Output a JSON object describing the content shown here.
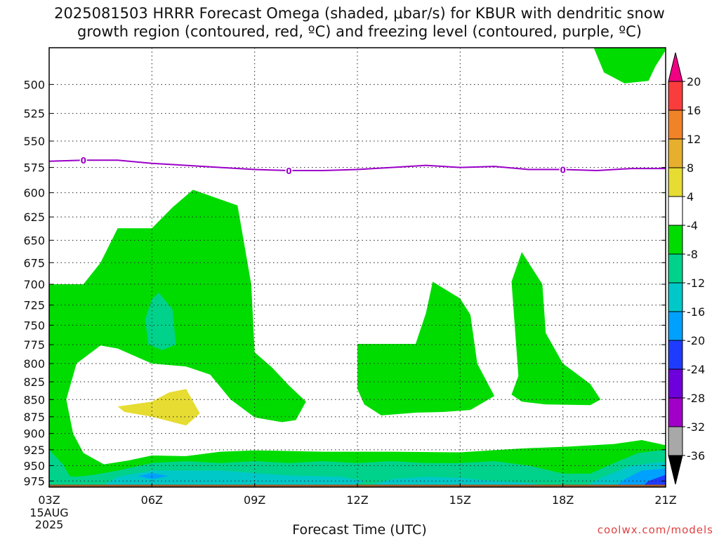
{
  "title_lines": [
    "2025081503 HRRR Forecast Omega (shaded, μbar/s) for KBUR with dendritic snow",
    "growth region (contoured, red, ºC) and freezing level (contoured, purple, ºC)"
  ],
  "xlabel": "Forecast Time (UTC)",
  "credit": "coolwx.com/models",
  "chart_data": {
    "type": "area",
    "title": "2025081503 HRRR Forecast Omega (shaded, μbar/s) for KBUR with dendritic snow growth region (contoured, red, ºC) and freezing level (contoured, purple, ºC)",
    "xlabel": "Forecast Time (UTC)",
    "ylabel": "",
    "x_ticks": [
      "03Z",
      "06Z",
      "09Z",
      "12Z",
      "15Z",
      "18Z",
      "21Z"
    ],
    "x_first_sub": [
      "15AUG",
      "2025"
    ],
    "xlim": [
      3,
      21
    ],
    "y_ticks": [
      500,
      525,
      550,
      575,
      600,
      625,
      650,
      675,
      700,
      725,
      750,
      775,
      800,
      825,
      850,
      875,
      900,
      925,
      950,
      975
    ],
    "ylim": [
      470,
      985
    ],
    "y_scale": "log-pressure",
    "grid": true,
    "colorbar": {
      "levels": [
        -36,
        -32,
        -28,
        -24,
        -20,
        -16,
        -12,
        -8,
        -4,
        4,
        8,
        12,
        16,
        20
      ],
      "colors": [
        "#000000",
        "#a8a8a8",
        "#a000c8",
        "#6e00dc",
        "#1e3cff",
        "#00a0ff",
        "#00c8c8",
        "#00d28c",
        "#00dc00",
        "#ffffff",
        "#e6dc32",
        "#e6af2d",
        "#f08228",
        "#fa3c3c",
        "#f00082"
      ]
    },
    "freezing_level": {
      "label": "0",
      "color": "#9b00c8",
      "x": [
        3,
        4,
        5,
        6,
        7,
        8,
        9,
        10,
        11,
        12,
        13,
        14,
        15,
        16,
        17,
        18,
        19,
        20,
        21
      ],
      "y": [
        569,
        568,
        568,
        571,
        573,
        575,
        577,
        578,
        578,
        577,
        575,
        573,
        575,
        574,
        577,
        577,
        578,
        576,
        576
      ]
    },
    "regions": [
      {
        "level": -8,
        "color": "#00dc00",
        "points": [
          [
            3.0,
            700
          ],
          [
            4.0,
            700
          ],
          [
            4.5,
            675
          ],
          [
            5.0,
            637
          ],
          [
            6.0,
            637
          ],
          [
            6.6,
            615
          ],
          [
            7.2,
            597
          ],
          [
            8.5,
            613
          ],
          [
            8.9,
            700
          ],
          [
            9.0,
            785
          ],
          [
            9.5,
            805
          ],
          [
            10.0,
            830
          ],
          [
            10.5,
            853
          ],
          [
            10.2,
            880
          ],
          [
            9.8,
            883
          ],
          [
            9.0,
            876
          ],
          [
            8.3,
            850
          ],
          [
            7.7,
            815
          ],
          [
            7.0,
            804
          ],
          [
            6.0,
            800
          ],
          [
            5.0,
            780
          ],
          [
            4.5,
            776
          ],
          [
            3.8,
            800
          ],
          [
            3.5,
            850
          ],
          [
            3.7,
            900
          ],
          [
            4.0,
            930
          ],
          [
            4.6,
            948
          ],
          [
            5.3,
            942
          ],
          [
            6.0,
            934
          ],
          [
            7.0,
            935
          ],
          [
            8.0,
            928
          ],
          [
            9.0,
            926
          ],
          [
            11.0,
            928
          ],
          [
            13.0,
            928
          ],
          [
            15.0,
            929
          ],
          [
            16.8,
            923
          ],
          [
            18.2,
            920
          ],
          [
            19.5,
            916
          ],
          [
            20.3,
            910
          ],
          [
            21.0,
            918
          ],
          [
            21.0,
            985
          ],
          [
            3.0,
            985
          ]
        ]
      },
      {
        "level": -8,
        "color": "#00dc00",
        "points": [
          [
            12.0,
            774
          ],
          [
            13.7,
            774
          ],
          [
            14.0,
            735
          ],
          [
            14.2,
            697
          ],
          [
            15.0,
            717
          ],
          [
            15.3,
            737
          ],
          [
            15.5,
            800
          ],
          [
            16.0,
            845
          ],
          [
            15.3,
            865
          ],
          [
            14.5,
            868
          ],
          [
            13.7,
            869
          ],
          [
            12.7,
            873
          ],
          [
            12.2,
            857
          ],
          [
            12.0,
            835
          ]
        ]
      },
      {
        "level": -8,
        "color": "#00dc00",
        "points": [
          [
            16.5,
            843
          ],
          [
            16.7,
            817
          ],
          [
            16.5,
            697
          ],
          [
            16.8,
            663
          ],
          [
            17.4,
            700
          ],
          [
            17.5,
            760
          ],
          [
            18.0,
            800
          ],
          [
            18.8,
            828
          ],
          [
            19.1,
            850
          ],
          [
            18.8,
            858
          ],
          [
            17.5,
            857
          ],
          [
            16.8,
            853
          ]
        ]
      },
      {
        "level": -8,
        "color": "#00dc00",
        "points": [
          [
            19.4,
            470
          ],
          [
            21.0,
            470
          ],
          [
            21.0,
            472
          ],
          [
            20.7,
            485
          ],
          [
            20.5,
            497
          ],
          [
            19.8,
            499
          ],
          [
            19.2,
            490
          ],
          [
            18.9,
            470
          ]
        ]
      },
      {
        "level": -12,
        "color": "#00d28c",
        "points": [
          [
            5.8,
            743
          ],
          [
            6.0,
            718
          ],
          [
            6.2,
            710
          ],
          [
            6.6,
            730
          ],
          [
            6.7,
            775
          ],
          [
            6.3,
            782
          ],
          [
            5.9,
            775
          ]
        ]
      },
      {
        "level": -12,
        "color": "#00d28c",
        "points": [
          [
            3.0,
            925
          ],
          [
            3.4,
            948
          ],
          [
            3.6,
            967
          ],
          [
            3.8,
            968
          ],
          [
            4.3,
            965
          ],
          [
            5.0,
            958
          ],
          [
            6.0,
            946
          ],
          [
            7.0,
            943
          ],
          [
            8.0,
            946
          ],
          [
            9.0,
            943
          ],
          [
            10.0,
            946
          ],
          [
            11.0,
            943
          ],
          [
            12.0,
            946
          ],
          [
            13.0,
            943
          ],
          [
            14.0,
            946
          ],
          [
            15.0,
            946
          ],
          [
            16.0,
            943
          ],
          [
            17.0,
            950
          ],
          [
            18.0,
            963
          ],
          [
            18.8,
            963
          ],
          [
            19.4,
            948
          ],
          [
            20.2,
            930
          ],
          [
            21.0,
            925
          ],
          [
            21.0,
            985
          ],
          [
            3.0,
            985
          ]
        ]
      },
      {
        "level": -16,
        "color": "#00c8c8",
        "points": [
          [
            4.5,
            985
          ],
          [
            5.0,
            968
          ],
          [
            6.0,
            958
          ],
          [
            8.0,
            958
          ],
          [
            10.0,
            966
          ],
          [
            11.5,
            968
          ],
          [
            12.2,
            975
          ],
          [
            11.8,
            985
          ]
        ]
      },
      {
        "level": -16,
        "color": "#00c8c8",
        "points": [
          [
            12.2,
            985
          ],
          [
            13.0,
            972
          ],
          [
            14.0,
            968
          ],
          [
            15.0,
            970
          ],
          [
            16.0,
            975
          ],
          [
            17.0,
            978
          ],
          [
            17.8,
            985
          ]
        ]
      },
      {
        "level": -16,
        "color": "#00c8c8",
        "points": [
          [
            18.6,
            985
          ],
          [
            19.2,
            968
          ],
          [
            20.0,
            950
          ],
          [
            20.8,
            945
          ],
          [
            21.0,
            945
          ],
          [
            21.0,
            985
          ]
        ]
      },
      {
        "level": -20,
        "color": "#00a0ff",
        "points": [
          [
            5.6,
            967
          ],
          [
            6.0,
            962
          ],
          [
            6.5,
            967
          ],
          [
            6.0,
            972
          ]
        ]
      },
      {
        "level": -20,
        "color": "#00a0ff",
        "points": [
          [
            19.5,
            985
          ],
          [
            19.8,
            972
          ],
          [
            20.3,
            958
          ],
          [
            21.0,
            955
          ],
          [
            21.0,
            985
          ]
        ]
      },
      {
        "level": -24,
        "color": "#1e3cff",
        "points": [
          [
            20.3,
            985
          ],
          [
            20.5,
            975
          ],
          [
            21.0,
            965
          ],
          [
            21.0,
            985
          ]
        ]
      },
      {
        "level": 4,
        "color": "#ffffff",
        "points": [
          [
            10.0,
            985
          ],
          [
            10.5,
            981
          ],
          [
            11.0,
            982
          ],
          [
            11.3,
            985
          ]
        ]
      },
      {
        "level": 8,
        "color": "#e6dc32",
        "points": [
          [
            5.0,
            860
          ],
          [
            6.0,
            853
          ],
          [
            6.5,
            840
          ],
          [
            7.0,
            835
          ],
          [
            7.4,
            870
          ],
          [
            7.0,
            888
          ],
          [
            6.0,
            875
          ],
          [
            5.2,
            868
          ]
        ]
      }
    ],
    "ground": {
      "color": "#a05a28",
      "from_pressure": 981
    }
  }
}
